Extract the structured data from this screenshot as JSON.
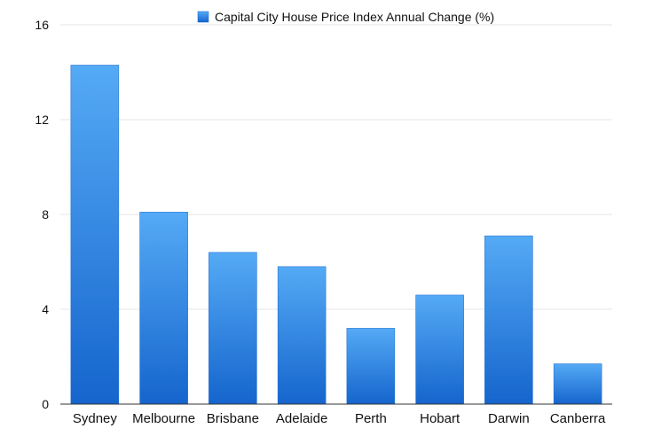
{
  "chart_data": {
    "type": "bar",
    "categories": [
      "Sydney",
      "Melbourne",
      "Brisbane",
      "Adelaide",
      "Perth",
      "Hobart",
      "Darwin",
      "Canberra"
    ],
    "series": [
      {
        "name": "Capital City House Price Index Annual Change (%)",
        "values": [
          14.3,
          8.1,
          6.4,
          5.8,
          3.2,
          4.6,
          7.1,
          1.7
        ]
      }
    ],
    "title": "",
    "xlabel": "",
    "ylabel": "",
    "ylim": [
      0,
      16
    ],
    "yticks": [
      "0",
      "4",
      "8",
      "12",
      "16"
    ],
    "grid": true,
    "legend_position": "top",
    "colors": {
      "bar_top": "#55AAF5",
      "bar_bottom": "#1565CD",
      "gridline": "#E6E6E6",
      "axis": "#333333"
    }
  }
}
